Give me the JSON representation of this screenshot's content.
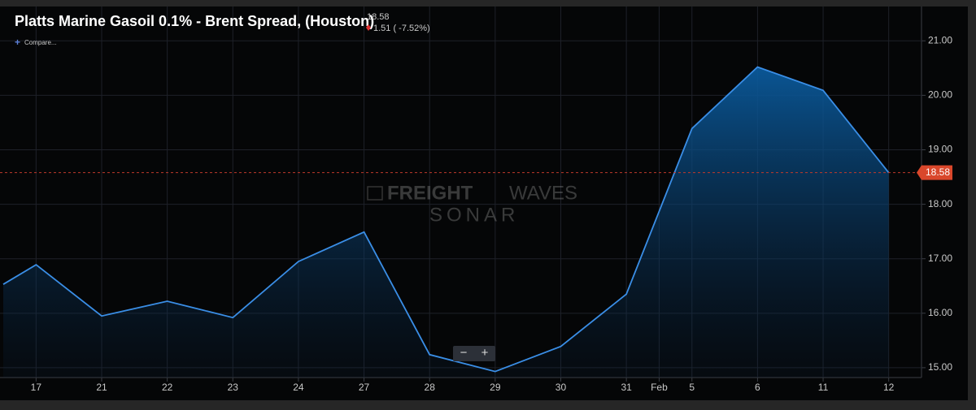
{
  "chart_data": {
    "type": "area-line",
    "title": "Platts Marine Gasoil 0.1% - Brent Spread, (Houston)",
    "last_value": 18.58,
    "change": "1.51 ( -7.52%)",
    "compare": "Compare...",
    "watermark": [
      "FREIGHT",
      "WAVES",
      "SONAR"
    ],
    "x": [
      0,
      1,
      3,
      5,
      7,
      9,
      11,
      13,
      15,
      17,
      19,
      21,
      23,
      25,
      27
    ],
    "values": [
      16.53,
      16.89,
      15.95,
      16.22,
      15.92,
      16.95,
      17.49,
      15.24,
      14.93,
      15.39,
      16.35,
      19.39,
      20.52,
      20.09,
      18.58
    ],
    "color": "#3a8ee6",
    "xlim": [
      -0.1,
      28
    ],
    "xticks": [
      {
        "value": 1,
        "label": "17"
      },
      {
        "value": 3,
        "label": "21"
      },
      {
        "value": 5,
        "label": "22"
      },
      {
        "value": 7,
        "label": "23"
      },
      {
        "value": 9,
        "label": "24"
      },
      {
        "value": 11,
        "label": "27"
      },
      {
        "value": 13,
        "label": "28"
      },
      {
        "value": 15,
        "label": "29"
      },
      {
        "value": 17,
        "label": "30"
      },
      {
        "value": 19,
        "label": "31"
      },
      {
        "value": 20,
        "label": "Feb"
      },
      {
        "value": 21,
        "label": "5"
      },
      {
        "value": 23,
        "label": "6"
      },
      {
        "value": 25,
        "label": "11"
      },
      {
        "value": 27,
        "label": "12"
      }
    ],
    "ylim": [
      14.82,
      21.63
    ],
    "yticks": [
      {
        "value": 15,
        "label": "15.00"
      },
      {
        "value": 16,
        "label": "16.00"
      },
      {
        "value": 17,
        "label": "17.00"
      },
      {
        "value": 18,
        "label": "18.00"
      },
      {
        "value": 19,
        "label": "19.00"
      },
      {
        "value": 20,
        "label": "20.00"
      },
      {
        "value": 21,
        "label": "21.00"
      }
    ],
    "grid": true
  }
}
